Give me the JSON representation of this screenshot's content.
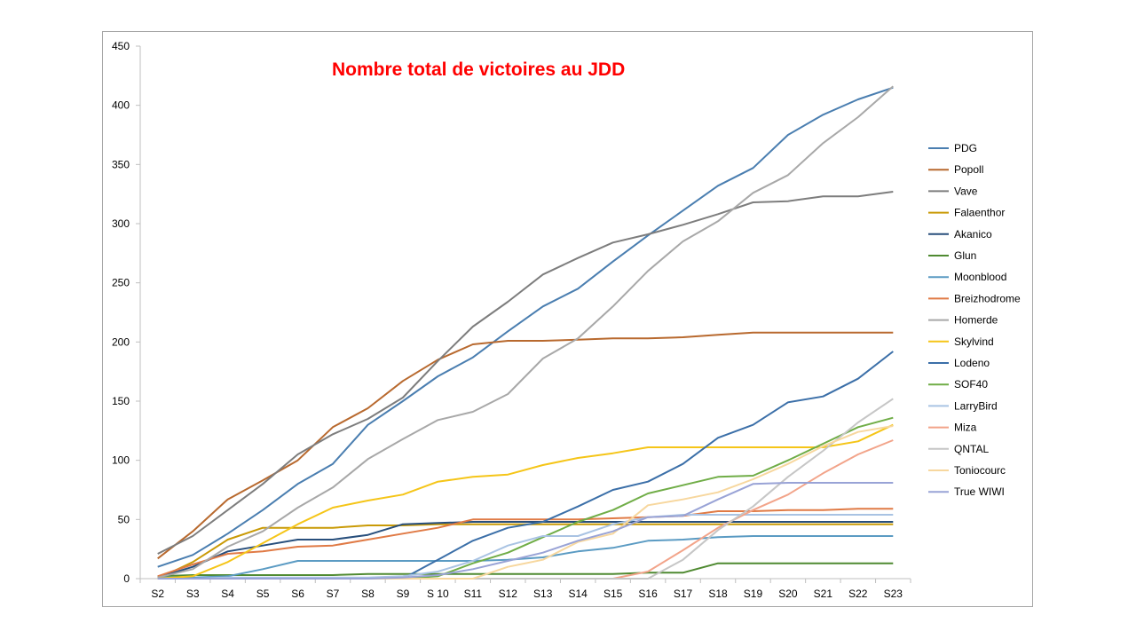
{
  "chart_data": {
    "type": "line",
    "title": "Nombre total de victoires au JDD",
    "xlabel": "",
    "ylabel": "",
    "ylim": [
      0,
      450
    ],
    "yticks": [
      0,
      50,
      100,
      150,
      200,
      250,
      300,
      350,
      400,
      450
    ],
    "grid": false,
    "legend": "right",
    "categories": [
      "S2",
      "S3",
      "S4",
      "S5",
      "S6",
      "S7",
      "S8",
      "S9",
      "S 10",
      "S11",
      "S12",
      "S13",
      "S14",
      "S15",
      "S16",
      "S17",
      "S18",
      "S19",
      "S20",
      "S21",
      "S22",
      "S23"
    ],
    "series": [
      {
        "name": "PDG",
        "color": "#4a7eb0",
        "values": [
          10,
          20,
          38,
          58,
          80,
          97,
          130,
          150,
          171,
          187,
          209,
          230,
          245,
          268,
          290,
          311,
          332,
          347,
          375,
          392,
          405,
          415
        ]
      },
      {
        "name": "Popoll",
        "color": "#b8692e",
        "values": [
          17,
          40,
          67,
          83,
          100,
          128,
          144,
          167,
          185,
          198,
          201,
          201,
          202,
          203,
          203,
          204,
          206,
          208,
          208,
          208,
          208,
          208
        ]
      },
      {
        "name": "Vave",
        "color": "#7d7d7d",
        "values": [
          21,
          36,
          58,
          80,
          105,
          122,
          135,
          153,
          184,
          213,
          234,
          257,
          271,
          284,
          291,
          299,
          308,
          318,
          319,
          323,
          323,
          327
        ]
      },
      {
        "name": "Falaenthor",
        "color": "#c99a06",
        "values": [
          0,
          14,
          33,
          43,
          43,
          43,
          45,
          45,
          46,
          46,
          46,
          46,
          46,
          46,
          46,
          46,
          46,
          46,
          46,
          46,
          46,
          46
        ]
      },
      {
        "name": "Akanico",
        "color": "#284f7c",
        "values": [
          1,
          10,
          23,
          28,
          33,
          33,
          37,
          46,
          47,
          48,
          48,
          48,
          48,
          48,
          48,
          48,
          48,
          48,
          48,
          48,
          48,
          48
        ]
      },
      {
        "name": "Glun",
        "color": "#4f8a31",
        "values": [
          2,
          3,
          3,
          3,
          3,
          3,
          4,
          4,
          4,
          4,
          4,
          4,
          4,
          4,
          5,
          5,
          13,
          13,
          13,
          13,
          13,
          13
        ]
      },
      {
        "name": "Moonblood",
        "color": "#5b9bc3",
        "values": [
          1,
          1,
          2,
          8,
          15,
          15,
          15,
          15,
          15,
          15,
          16,
          18,
          23,
          26,
          32,
          33,
          35,
          36,
          36,
          36,
          36,
          36
        ]
      },
      {
        "name": "Breizhodrome",
        "color": "#e07a45",
        "values": [
          2,
          12,
          21,
          23,
          27,
          28,
          33,
          38,
          43,
          50,
          50,
          50,
          50,
          51,
          52,
          53,
          57,
          57,
          58,
          58,
          59,
          59
        ]
      },
      {
        "name": "Homerde",
        "color": "#a8a8a8",
        "values": [
          1,
          8,
          27,
          40,
          60,
          77,
          101,
          118,
          134,
          141,
          156,
          186,
          203,
          230,
          260,
          285,
          302,
          326,
          341,
          368,
          390,
          416
        ]
      },
      {
        "name": "Skylvind",
        "color": "#f5c518",
        "values": [
          0,
          2,
          14,
          30,
          46,
          60,
          66,
          71,
          82,
          86,
          88,
          96,
          102,
          106,
          111,
          111,
          111,
          111,
          111,
          111,
          116,
          130
        ]
      },
      {
        "name": "Lodeno",
        "color": "#3b6fa8",
        "values": [
          0,
          0,
          0,
          0,
          0,
          0,
          0,
          0,
          16,
          32,
          43,
          48,
          61,
          75,
          82,
          97,
          119,
          130,
          149,
          154,
          169,
          192
        ]
      },
      {
        "name": "SOF40",
        "color": "#70ad47",
        "values": [
          0,
          0,
          0,
          0,
          0,
          0,
          0,
          0,
          2,
          13,
          22,
          35,
          48,
          58,
          72,
          79,
          86,
          87,
          100,
          114,
          128,
          136
        ]
      },
      {
        "name": "LarryBird",
        "color": "#a9c3e3",
        "values": [
          0,
          0,
          1,
          1,
          1,
          1,
          1,
          2,
          6,
          15,
          28,
          36,
          36,
          46,
          52,
          54,
          54,
          54,
          54,
          54,
          54,
          54
        ]
      },
      {
        "name": "Miza",
        "color": "#f2a48a",
        "values": [
          0,
          0,
          0,
          0,
          0,
          0,
          0,
          0,
          0,
          0,
          0,
          0,
          0,
          0,
          6,
          24,
          43,
          58,
          71,
          89,
          105,
          117
        ]
      },
      {
        "name": "QNTAL",
        "color": "#c6c6c6",
        "values": [
          0,
          0,
          0,
          0,
          0,
          0,
          0,
          0,
          0,
          0,
          0,
          0,
          0,
          0,
          0,
          16,
          41,
          61,
          86,
          108,
          132,
          152
        ]
      },
      {
        "name": "Toniocourc",
        "color": "#f7d79e",
        "values": [
          0,
          0,
          0,
          0,
          0,
          0,
          0,
          0,
          0,
          0,
          10,
          16,
          31,
          38,
          62,
          67,
          73,
          84,
          97,
          112,
          124,
          129
        ]
      },
      {
        "name": "True WIWI",
        "color": "#99a3d6",
        "values": [
          0,
          0,
          0,
          0,
          0,
          0,
          0,
          1,
          3,
          8,
          15,
          22,
          32,
          40,
          52,
          53,
          67,
          80,
          81,
          81,
          81,
          81
        ]
      }
    ]
  }
}
